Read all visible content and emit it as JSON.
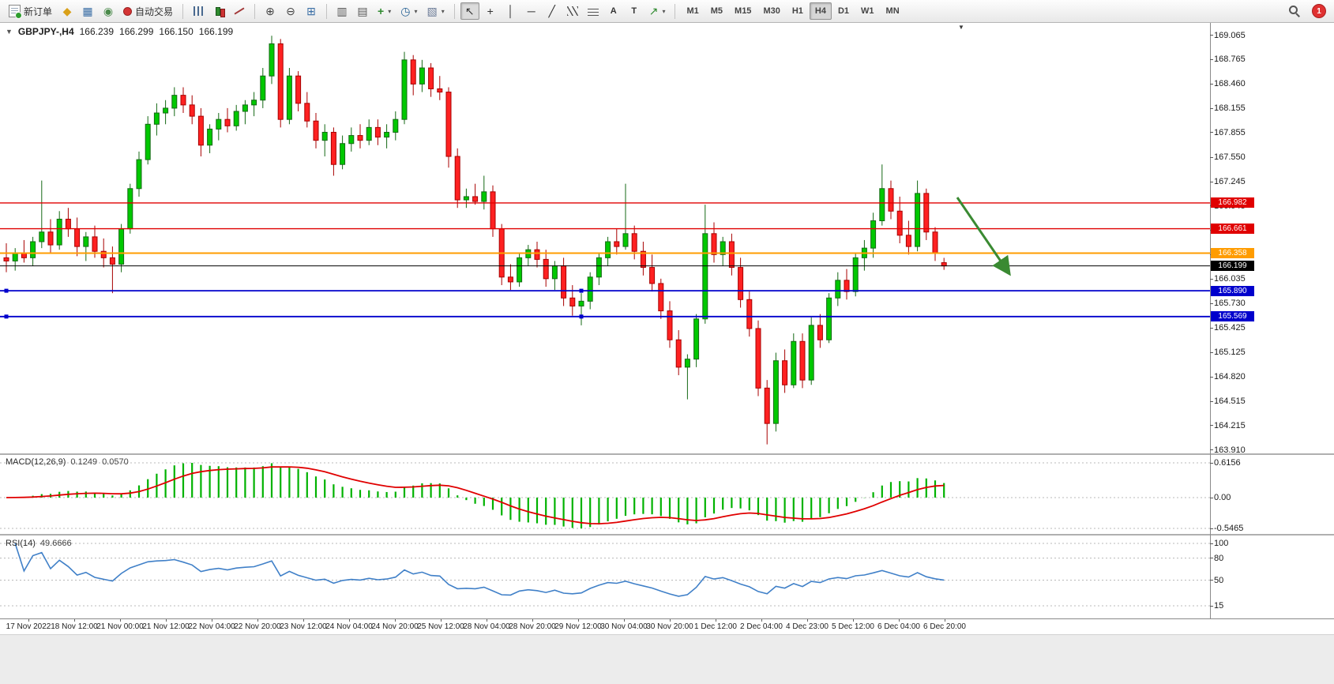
{
  "toolbar": {
    "new_order": {
      "label": "新订单"
    },
    "autotrading": {
      "label": "自动交易"
    },
    "timeframes": {
      "items": [
        "M1",
        "M5",
        "M15",
        "M30",
        "H1",
        "H4",
        "D1",
        "W1",
        "MN"
      ],
      "active": "H4"
    },
    "notification": {
      "count": "1"
    },
    "icons": {
      "profile": "◆",
      "market_watch": "▦",
      "navigator": "◉",
      "zoom_in": "⊕",
      "zoom_out": "⊖",
      "tile_windows": "⊞",
      "indicator_list": "▥",
      "data_window": "▤",
      "add_indicator": "+",
      "period": "◷",
      "templates": "▧",
      "dropdown": "▾",
      "cursor": "↖",
      "crosshair": "+",
      "vertical_line": "│",
      "horizontal_line": "─",
      "trendline": "╱",
      "text": "A",
      "text_label": "T",
      "shapes": "↗",
      "title_caret": "▼",
      "shift_marker": "▼"
    }
  },
  "chart_data": {
    "type": "candlestick",
    "title": "GBPJPY-,H4",
    "ohlc_display": {
      "open": "166.239",
      "high": "166.299",
      "low": "166.150",
      "close": "166.199"
    },
    "price_axis_labels": [
      "169.065",
      "168.765",
      "168.460",
      "168.155",
      "167.855",
      "167.550",
      "167.245",
      "166.945",
      "166.640",
      "166.335",
      "166.035",
      "165.730",
      "165.425",
      "165.125",
      "164.820",
      "164.515",
      "164.215",
      "163.910"
    ],
    "levels": [
      {
        "price": 166.982,
        "label": "166.982",
        "color": "#e00000",
        "width": 1.4
      },
      {
        "price": 166.661,
        "label": "166.661",
        "color": "#e00000",
        "width": 1.4
      },
      {
        "price": 166.358,
        "label": "166.358",
        "color": "#ff9c00",
        "width": 2
      },
      {
        "price": 166.199,
        "label": "166.199",
        "color": "#000000",
        "width": 1,
        "current": true
      },
      {
        "price": 165.89,
        "label": "165.890",
        "color": "#0000cc",
        "width": 1.8,
        "handles": true
      },
      {
        "price": 165.569,
        "label": "165.569",
        "color": "#0000cc",
        "width": 1.8,
        "handles": true
      }
    ],
    "candles": [
      [
        166.3,
        166.48,
        166.12,
        166.26
      ],
      [
        166.26,
        166.42,
        166.14,
        166.36
      ],
      [
        166.36,
        166.52,
        166.24,
        166.3
      ],
      [
        166.3,
        166.56,
        166.2,
        166.5
      ],
      [
        166.5,
        167.26,
        166.42,
        166.62
      ],
      [
        166.62,
        166.78,
        166.36,
        166.46
      ],
      [
        166.46,
        166.88,
        166.4,
        166.78
      ],
      [
        166.78,
        166.92,
        166.56,
        166.66
      ],
      [
        166.66,
        166.8,
        166.32,
        166.44
      ],
      [
        166.44,
        166.62,
        166.26,
        166.56
      ],
      [
        166.56,
        166.7,
        166.3,
        166.38
      ],
      [
        166.38,
        166.54,
        166.18,
        166.3
      ],
      [
        166.3,
        166.44,
        165.86,
        166.22
      ],
      [
        166.22,
        166.72,
        166.12,
        166.66
      ],
      [
        166.66,
        167.22,
        166.6,
        167.16
      ],
      [
        167.16,
        167.62,
        167.06,
        167.52
      ],
      [
        167.52,
        168.06,
        167.46,
        167.96
      ],
      [
        167.96,
        168.22,
        167.82,
        168.1
      ],
      [
        168.1,
        168.26,
        167.96,
        168.16
      ],
      [
        168.16,
        168.42,
        168.06,
        168.32
      ],
      [
        168.32,
        168.42,
        168.1,
        168.2
      ],
      [
        168.2,
        168.32,
        167.96,
        168.06
      ],
      [
        168.06,
        168.16,
        167.56,
        167.7
      ],
      [
        167.7,
        167.96,
        167.6,
        167.9
      ],
      [
        167.9,
        168.1,
        167.76,
        168.02
      ],
      [
        168.02,
        168.16,
        167.86,
        167.94
      ],
      [
        167.94,
        168.2,
        167.88,
        168.12
      ],
      [
        168.12,
        168.26,
        167.96,
        168.2
      ],
      [
        168.2,
        168.36,
        168.06,
        168.26
      ],
      [
        168.26,
        168.66,
        168.16,
        168.56
      ],
      [
        168.56,
        169.06,
        168.46,
        168.96
      ],
      [
        168.96,
        169.02,
        167.92,
        168.02
      ],
      [
        168.02,
        168.66,
        167.96,
        168.56
      ],
      [
        168.56,
        168.62,
        168.12,
        168.22
      ],
      [
        168.22,
        168.36,
        167.92,
        168.0
      ],
      [
        168.0,
        168.1,
        167.66,
        167.76
      ],
      [
        167.76,
        167.96,
        167.56,
        167.86
      ],
      [
        167.86,
        167.92,
        167.32,
        167.46
      ],
      [
        167.46,
        167.82,
        167.4,
        167.72
      ],
      [
        167.72,
        167.92,
        167.62,
        167.82
      ],
      [
        167.82,
        167.96,
        167.66,
        167.76
      ],
      [
        167.76,
        168.02,
        167.7,
        167.92
      ],
      [
        167.92,
        168.02,
        167.7,
        167.8
      ],
      [
        167.8,
        167.96,
        167.66,
        167.86
      ],
      [
        167.86,
        168.12,
        167.76,
        168.02
      ],
      [
        168.02,
        168.86,
        167.96,
        168.76
      ],
      [
        168.76,
        168.82,
        168.32,
        168.46
      ],
      [
        168.46,
        168.76,
        168.36,
        168.66
      ],
      [
        168.66,
        168.72,
        168.3,
        168.4
      ],
      [
        168.4,
        168.56,
        168.26,
        168.36
      ],
      [
        168.36,
        168.42,
        167.42,
        167.56
      ],
      [
        167.56,
        167.66,
        166.92,
        167.02
      ],
      [
        167.02,
        167.16,
        166.92,
        167.06
      ],
      [
        167.06,
        167.22,
        166.96,
        167.0
      ],
      [
        167.0,
        167.32,
        166.9,
        167.12
      ],
      [
        167.12,
        167.2,
        166.56,
        166.66
      ],
      [
        166.66,
        166.72,
        165.96,
        166.06
      ],
      [
        166.06,
        166.22,
        165.9,
        166.0
      ],
      [
        166.0,
        166.36,
        165.94,
        166.3
      ],
      [
        166.3,
        166.46,
        166.2,
        166.4
      ],
      [
        166.4,
        166.5,
        166.18,
        166.28
      ],
      [
        166.28,
        166.4,
        165.94,
        166.04
      ],
      [
        166.04,
        166.26,
        165.9,
        166.2
      ],
      [
        166.2,
        166.3,
        165.7,
        165.8
      ],
      [
        165.8,
        165.96,
        165.58,
        165.7
      ],
      [
        165.7,
        165.86,
        165.46,
        165.76
      ],
      [
        165.76,
        166.12,
        165.66,
        166.06
      ],
      [
        166.06,
        166.36,
        165.96,
        166.3
      ],
      [
        166.3,
        166.56,
        166.2,
        166.5
      ],
      [
        166.5,
        166.66,
        166.34,
        166.44
      ],
      [
        166.44,
        167.22,
        166.4,
        166.6
      ],
      [
        166.6,
        166.7,
        166.28,
        166.38
      ],
      [
        166.38,
        166.5,
        166.08,
        166.18
      ],
      [
        166.18,
        166.34,
        165.88,
        165.98
      ],
      [
        165.98,
        166.04,
        165.54,
        165.64
      ],
      [
        165.64,
        165.76,
        165.18,
        165.28
      ],
      [
        165.28,
        165.4,
        164.84,
        164.94
      ],
      [
        164.94,
        165.1,
        164.54,
        165.04
      ],
      [
        165.04,
        165.6,
        164.94,
        165.54
      ],
      [
        165.54,
        166.96,
        165.48,
        166.6
      ],
      [
        166.6,
        166.74,
        166.24,
        166.34
      ],
      [
        166.34,
        166.56,
        166.2,
        166.5
      ],
      [
        166.5,
        166.6,
        166.08,
        166.18
      ],
      [
        166.18,
        166.3,
        165.68,
        165.78
      ],
      [
        165.78,
        165.88,
        165.32,
        165.42
      ],
      [
        165.42,
        165.52,
        164.58,
        164.68
      ],
      [
        164.68,
        164.78,
        163.98,
        164.24
      ],
      [
        164.24,
        165.12,
        164.14,
        165.02
      ],
      [
        165.02,
        165.16,
        164.62,
        164.72
      ],
      [
        164.72,
        165.36,
        164.68,
        165.26
      ],
      [
        165.26,
        165.36,
        164.68,
        164.78
      ],
      [
        164.78,
        165.56,
        164.72,
        165.46
      ],
      [
        165.46,
        165.6,
        165.18,
        165.28
      ],
      [
        165.28,
        165.86,
        165.24,
        165.8
      ],
      [
        165.8,
        166.12,
        165.7,
        166.02
      ],
      [
        166.02,
        166.16,
        165.78,
        165.88
      ],
      [
        165.88,
        166.36,
        165.82,
        166.3
      ],
      [
        166.3,
        166.52,
        166.14,
        166.42
      ],
      [
        166.42,
        166.86,
        166.3,
        166.76
      ],
      [
        166.76,
        167.46,
        166.7,
        167.16
      ],
      [
        167.16,
        167.26,
        166.78,
        166.88
      ],
      [
        166.88,
        167.06,
        166.48,
        166.58
      ],
      [
        166.58,
        166.76,
        166.34,
        166.44
      ],
      [
        166.44,
        167.26,
        166.38,
        167.1
      ],
      [
        167.1,
        167.16,
        166.52,
        166.62
      ],
      [
        166.62,
        166.68,
        166.26,
        166.36
      ],
      [
        166.239,
        166.299,
        166.15,
        166.199
      ]
    ],
    "time_axis_labels": [
      "17 Nov 2022",
      "18 Nov 12:00",
      "21 Nov 00:00",
      "21 Nov 12:00",
      "22 Nov 04:00",
      "22 Nov 20:00",
      "23 Nov 12:00",
      "24 Nov 04:00",
      "24 Nov 20:00",
      "25 Nov 12:00",
      "28 Nov 04:00",
      "28 Nov 20:00",
      "29 Nov 12:00",
      "30 Nov 04:00",
      "30 Nov 20:00",
      "1 Dec 12:00",
      "2 Dec 04:00",
      "4 Dec 23:00",
      "5 Dec 12:00",
      "6 Dec 04:00",
      "6 Dec 20:00"
    ],
    "colors": {
      "bull": "#00c800",
      "bear": "#ff2121",
      "bull_border": "#156915",
      "bear_border": "#a80000"
    },
    "indicators": {
      "macd": {
        "title": "MACD(12,26,9)",
        "value_main": "0.1249",
        "value_signal": "0.0570",
        "axis_labels": [
          "0.6156",
          "0.00",
          "-0.5465"
        ],
        "fast": 12,
        "slow": 26,
        "signal_period": 9,
        "histogram_color": "#00b200",
        "signal_color": "#e00000"
      },
      "rsi": {
        "title": "RSI(14)",
        "value": "49.6666",
        "axis_labels": [
          "100",
          "80",
          "50",
          "15"
        ],
        "period": 14,
        "line_color": "#4080c8",
        "levels": [
          100,
          80,
          50,
          15
        ]
      }
    },
    "annotation_arrow": {
      "color": "#3a8a32"
    }
  }
}
